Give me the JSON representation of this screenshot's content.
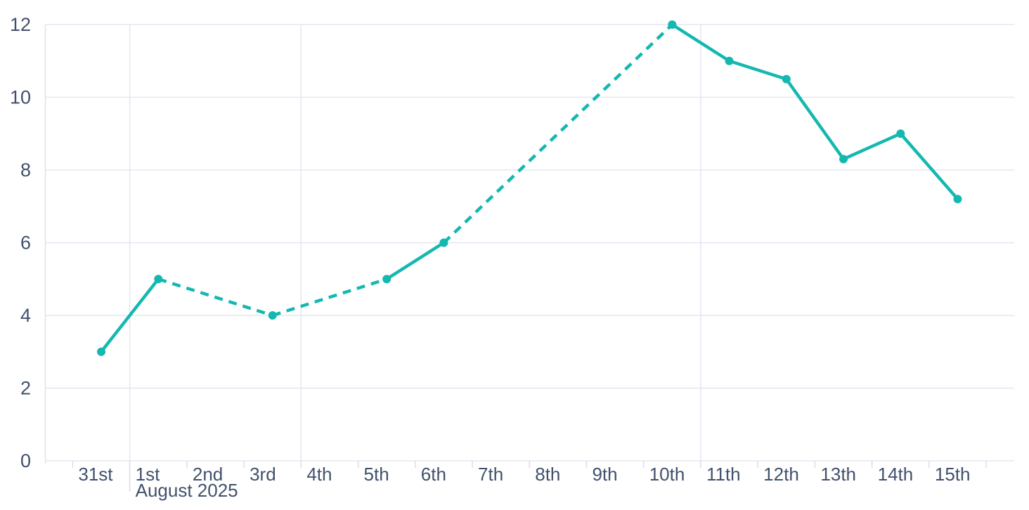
{
  "page": {
    "background": "#ffffff"
  },
  "chart_data": {
    "type": "line",
    "title": "",
    "legend": "none",
    "grid": true,
    "x_axis": {
      "labels": [
        "31st",
        "1st",
        "2nd",
        "3rd",
        "4th",
        "5th",
        "6th",
        "7th",
        "8th",
        "9th",
        "10th",
        "11th",
        "12th",
        "13th",
        "14th",
        "15th"
      ],
      "month_label": "August 2025",
      "month_boundary_index": 1,
      "week_gridline_indices": [
        1,
        4,
        11
      ]
    },
    "y_axis": {
      "min": 0,
      "max": 12,
      "ticks": [
        0,
        2,
        4,
        6,
        8,
        10,
        12
      ]
    },
    "series": [
      {
        "name": "series-1",
        "points": [
          {
            "label": "31st",
            "index": 0,
            "value": 3
          },
          {
            "label": "1st",
            "index": 1,
            "value": 5
          },
          {
            "label": "3rd",
            "index": 3,
            "value": 4
          },
          {
            "label": "5th",
            "index": 5,
            "value": 5
          },
          {
            "label": "6th",
            "index": 6,
            "value": 6
          },
          {
            "label": "10th",
            "index": 10,
            "value": 12
          },
          {
            "label": "11th",
            "index": 11,
            "value": 11
          },
          {
            "label": "12th",
            "index": 12,
            "value": 10.5
          },
          {
            "label": "13th",
            "index": 13,
            "value": 8.3
          },
          {
            "label": "14th",
            "index": 14,
            "value": 9
          },
          {
            "label": "15th",
            "index": 15,
            "value": 7.2
          }
        ],
        "segments": [
          {
            "from": "31st",
            "to": "1st",
            "style": "solid"
          },
          {
            "from": "1st",
            "to": "3rd",
            "style": "dashed"
          },
          {
            "from": "3rd",
            "to": "5th",
            "style": "dashed"
          },
          {
            "from": "5th",
            "to": "6th",
            "style": "solid"
          },
          {
            "from": "6th",
            "to": "10th",
            "style": "dashed"
          },
          {
            "from": "10th",
            "to": "11th",
            "style": "solid"
          },
          {
            "from": "11th",
            "to": "12th",
            "style": "solid"
          },
          {
            "from": "12th",
            "to": "13th",
            "style": "solid"
          },
          {
            "from": "13th",
            "to": "14th",
            "style": "solid"
          },
          {
            "from": "14th",
            "to": "15th",
            "style": "solid"
          }
        ]
      }
    ],
    "colors": {
      "line": "#14b8b1",
      "marker": "#14b8b1",
      "grid": "#e3e7f1",
      "axis_line": "#dde2ec",
      "tick": "#d9dee9",
      "label": "#41516c",
      "background": "#ffffff"
    }
  }
}
